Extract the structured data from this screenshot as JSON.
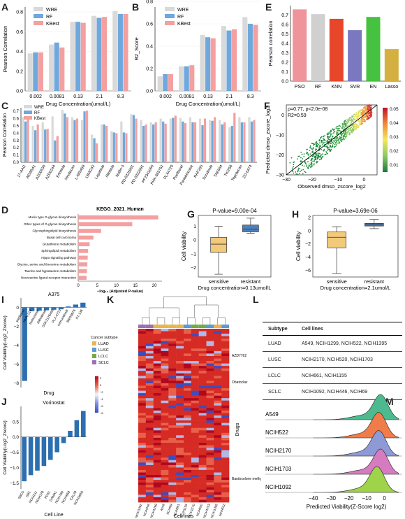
{
  "labels": {
    "A": "A",
    "B": "B",
    "C": "C",
    "D": "D",
    "E": "E",
    "F": "F",
    "G": "G",
    "H": "H",
    "I": "I",
    "J": "J",
    "K": "K",
    "L": "L",
    "M": "M"
  },
  "legend_methods": [
    "WRE",
    "RF",
    "KBest"
  ],
  "colors": {
    "wre": "#d9d9d9",
    "rf": "#6fa8dc",
    "kbest": "#f4a0a0"
  },
  "panelA": {
    "ylabel": "Pearson Correlation",
    "xlabel": "Drug Concentration(umol/L)",
    "categories": [
      "0.002",
      "0.0081",
      "0.13",
      "2.1",
      "8.3"
    ],
    "yticks": [
      "0.0",
      "0.2",
      "0.4",
      "0.6",
      "0.8"
    ],
    "chart_data": {
      "type": "bar",
      "categories": [
        "0.002",
        "0.0081",
        "0.13",
        "2.1",
        "8.3"
      ],
      "series": [
        {
          "name": "WRE",
          "values": [
            0.38,
            0.47,
            0.7,
            0.76,
            0.81
          ]
        },
        {
          "name": "RF",
          "values": [
            0.39,
            0.49,
            0.7,
            0.74,
            0.78
          ]
        },
        {
          "name": "KBest",
          "values": [
            0.39,
            0.44,
            0.69,
            0.75,
            0.78
          ]
        }
      ],
      "ylim": [
        0,
        0.85
      ]
    }
  },
  "panelB": {
    "ylabel": "R2_Score",
    "xlabel": "Drug Concentration(umol/L)",
    "categories": [
      "0.002",
      "0.0081",
      "0.13",
      "2.1",
      "8.3"
    ],
    "yticks": [
      "0.0",
      "0.2",
      "0.4",
      "0.6",
      "0.8"
    ],
    "chart_data": {
      "type": "bar",
      "categories": [
        "0.002",
        "0.0081",
        "0.13",
        "2.1",
        "8.3"
      ],
      "series": [
        {
          "name": "WRE",
          "values": [
            0.13,
            0.22,
            0.5,
            0.58,
            0.66
          ]
        },
        {
          "name": "RF",
          "values": [
            0.15,
            0.22,
            0.48,
            0.54,
            0.6
          ]
        },
        {
          "name": "KBest",
          "values": [
            0.15,
            0.23,
            0.47,
            0.55,
            0.59
          ]
        }
      ],
      "ylim": [
        0,
        0.75
      ]
    }
  },
  "panelC": {
    "ylabel": "Pearson Correlation",
    "yticks": [
      "0.0",
      "0.1",
      "0.2",
      "0.3",
      "0.4",
      "0.5",
      "0.6",
      "0.7"
    ],
    "chart_data": {
      "type": "bar",
      "categories": [
        "17-AAG",
        "AEW541",
        "AZD0530",
        "AZD6244",
        "Erlotinib",
        "Irinotecan",
        "L-685458",
        "LBW242",
        "Lapatinib",
        "Nilotinib",
        "Nutlin-3",
        "PD-0325901",
        "PD-0332991",
        "PF2341066",
        "PHA-665752",
        "PLX4720",
        "Paclitaxel",
        "Panobinostat",
        "RAF265",
        "Sorafenib",
        "TAE684",
        "TKI258",
        "Topotecan",
        "ZD-6474"
      ],
      "series": [
        {
          "name": "WRE",
          "values": [
            0.62,
            0.5,
            0.55,
            0.63,
            0.72,
            0.62,
            0.58,
            0.38,
            0.52,
            0.43,
            0.56,
            0.66,
            0.58,
            0.55,
            0.6,
            0.6,
            0.61,
            0.62,
            0.6,
            0.58,
            0.58,
            0.48,
            0.62,
            0.62
          ]
        },
        {
          "name": "RF",
          "values": [
            0.56,
            0.44,
            0.45,
            0.3,
            0.67,
            0.58,
            0.7,
            0.33,
            0.52,
            0.41,
            0.41,
            0.65,
            0.5,
            0.52,
            0.56,
            0.61,
            0.56,
            0.55,
            0.51,
            0.57,
            0.52,
            0.5,
            0.55,
            0.56
          ]
        },
        {
          "name": "KBest",
          "values": [
            0.59,
            0.52,
            0.46,
            0.36,
            0.62,
            0.6,
            0.71,
            0.26,
            0.5,
            0.4,
            0.4,
            0.6,
            0.52,
            0.55,
            0.53,
            0.64,
            0.54,
            0.55,
            0.6,
            0.62,
            0.55,
            0.68,
            0.55,
            0.58
          ]
        }
      ],
      "ylim": [
        0,
        0.75
      ]
    }
  },
  "panelD": {
    "title": "KEGG_2021_Human",
    "xlabel": "−log₁₀ (Adjusted P-value)",
    "xticks": [
      "0",
      "5",
      "10",
      "15",
      "20"
    ],
    "chart_data": {
      "type": "bar",
      "categories": [
        "Mucin type O-glycan biosynthesis",
        "Other types of O-glycan biosynthesis",
        "Glycosphingolipid biosynthesis",
        "Basal cell carcinoma",
        "Glutathione metabolism",
        "Sphingolipid metabolism",
        "Hippo signaling pathway",
        "Glycine, serine and threonine metabolism",
        "Taurine and hypotaurine metabolism",
        "Neuroactive ligand-receptor interaction"
      ],
      "values": [
        21.0,
        14.2,
        6.0,
        4.0,
        3.0,
        2.6,
        2.5,
        2.4,
        2.3,
        2.2
      ],
      "xlim": [
        0,
        22
      ]
    }
  },
  "panelE": {
    "ylabel": "Pearson correlation",
    "yticks": [
      "0.0",
      "0.1",
      "0.2",
      "0.3",
      "0.4",
      "0.5",
      "0.6",
      "0.7"
    ],
    "chart_data": {
      "type": "bar",
      "categories": [
        "PSO",
        "RF",
        "KNN",
        "SVR",
        "EN",
        "Lasso"
      ],
      "values": [
        0.76,
        0.71,
        0.66,
        0.54,
        0.68,
        0.34
      ],
      "colors": [
        "#f0949c",
        "#d0d0d0",
        "#e8462a",
        "#7a79c0",
        "#45c23f",
        "#d4b040"
      ],
      "ylim": [
        0,
        0.8
      ]
    }
  },
  "panelF": {
    "stats": [
      "ρ=0.77, p<2.0e-08",
      "R2=0.59"
    ],
    "xlabel": "Observed dmso_zscore_log2",
    "ylabel": "Predicted dmso_zscore_log2",
    "xticks": [
      "−30",
      "−20",
      "−10",
      "0"
    ],
    "yticks": [
      "−30",
      "−20",
      "−10",
      "0"
    ],
    "colorbar": [
      "0.05",
      "0.04",
      "0.03",
      "0.02",
      "0.01"
    ],
    "chart_data": {
      "type": "scatter",
      "xlim": [
        -30,
        5
      ],
      "ylim": [
        -30,
        5
      ],
      "fit": "y=x"
    }
  },
  "panelG": {
    "title": "P-value=9.00e-04",
    "ylabel": "Cell viability",
    "xlabel": "Drug concentration=0.13umol/L",
    "groups": [
      "sensitive",
      "resistant"
    ],
    "yticks": [
      "1",
      "0",
      "−1",
      "−2"
    ],
    "chart_data": {
      "type": "box",
      "groups": [
        "sensitive",
        "resistant"
      ],
      "stats": [
        {
          "min": -2.5,
          "q1": -0.9,
          "median": -0.3,
          "q3": 0.2,
          "max": 1.0
        },
        {
          "min": 0.5,
          "q1": 0.6,
          "median": 0.8,
          "q3": 1.1,
          "max": 1.6
        }
      ],
      "ylim": [
        -2.7,
        1.8
      ]
    }
  },
  "panelH": {
    "title": "P-value=3.69e-06",
    "ylabel": "Cell viability",
    "xlabel": "Drug concentration=2.1umol/L",
    "groups": [
      "sensitive",
      "resistant"
    ],
    "yticks": [
      "2",
      "0",
      "−2",
      "−4",
      "−6"
    ],
    "chart_data": {
      "type": "box",
      "groups": [
        "sensitive",
        "resistant"
      ],
      "stats": [
        {
          "min": -6.5,
          "q1": -2.6,
          "median": -1.0,
          "q3": -0.2,
          "max": 0.6
        },
        {
          "min": 0.3,
          "q1": 0.7,
          "median": 0.9,
          "q3": 1.1,
          "max": 1.7
        }
      ],
      "ylim": [
        -7,
        2.3
      ]
    }
  },
  "panelI": {
    "title": "A375",
    "ylabel": "Cell Viability(Log2_Zscore)",
    "xlabel": "Drug",
    "yticks": [
      "0",
      "−2",
      "−4",
      "−6",
      "−8"
    ],
    "chart_data": {
      "type": "bar",
      "categories": [
        "paclitaxel",
        "HMN-214",
        "bortezomib",
        "dabrafenib",
        "GSK2126458",
        "PLX-4720",
        "vemurafenib",
        "BRD9876",
        "ST-136"
      ],
      "values": [
        -7.8,
        -0.4,
        -0.35,
        -0.3,
        -0.25,
        -0.2,
        0.1,
        0.3,
        0.5
      ],
      "ylim": [
        -8.5,
        1
      ]
    }
  },
  "panelJ": {
    "title": "Vorinostat",
    "ylabel": "Cell Viability(Log2_Zscore)",
    "xlabel": "Cell Line",
    "yticks": [
      "0.5",
      "0.0",
      "−0.5",
      "−1.0",
      "−1.5"
    ],
    "chart_data": {
      "type": "bar",
      "categories": [
        "SBC5",
        "GB1",
        "NCIH211",
        "NCIH378",
        "PC61",
        "DAMA1",
        "NCIH766",
        "NCIH659",
        "CAL29",
        "NCIH3650"
      ],
      "values": [
        -1.45,
        -1.25,
        -1.1,
        -0.95,
        -0.75,
        -0.5,
        -0.2,
        0.2,
        0.55,
        0.85
      ],
      "ylim": [
        -1.7,
        1.0
      ]
    }
  },
  "panelK": {
    "legend_title": "Cancer subtype",
    "subtypes": [
      "LUAD",
      "LUSC",
      "LCLC",
      "SCLC"
    ],
    "subtype_colors": [
      "#e8b64a",
      "#5b9bd5",
      "#70ad47",
      "#9b6fb5"
    ],
    "colorbar": [
      "2",
      "0",
      "−2",
      "−4",
      "−6",
      "−8"
    ],
    "drug_labels": [
      "AZD7762",
      "Obatoclax",
      "Bardoxolone methyl"
    ],
    "ylabel": "Drugs",
    "xlabel": "Cell lines",
    "columns": [
      "NCIH1092",
      "NCIH446",
      "NCIH1299",
      "A549",
      "NCIH69",
      "NCIH661",
      "NCIH1155",
      "NCIH2170",
      "NCIH520",
      "NCIH1703",
      "NCIH1395",
      "NCIH522"
    ]
  },
  "panelL": {
    "headers": [
      "Subtype",
      "Cell lines"
    ],
    "rows": [
      [
        "LUAD",
        "A549, NCIH1299, NCIH522, NCIH1395"
      ],
      [
        "LUSC",
        "NCIH2170, NCIH520, NCIH1703"
      ],
      [
        "LCLC",
        "NCIH661, NCIH1155"
      ],
      [
        "SCLC",
        "NCIH1092, NCIH446, NCIH69"
      ]
    ]
  },
  "panelM": {
    "xlabel": "Predicted Viability(Z-Score log2)",
    "xticks": [
      "−40",
      "−30",
      "−20",
      "−10",
      "0"
    ],
    "lines": [
      "A549",
      "NCIH522",
      "NCIH2170",
      "NCIH1703",
      "NCIH1092"
    ],
    "colors": [
      "#4cba8e",
      "#f07c4a",
      "#8e9ad6",
      "#d77bc0",
      "#9ed34a"
    ],
    "chart_data": {
      "type": "ridge",
      "series": [
        {
          "name": "A549",
          "peak": -2
        },
        {
          "name": "NCIH522",
          "peak": -3
        },
        {
          "name": "NCIH2170",
          "peak": -3
        },
        {
          "name": "NCIH1703",
          "peak": -2
        },
        {
          "name": "NCIH1092",
          "peak": -4
        }
      ],
      "xlim": [
        -45,
        10
      ]
    }
  }
}
